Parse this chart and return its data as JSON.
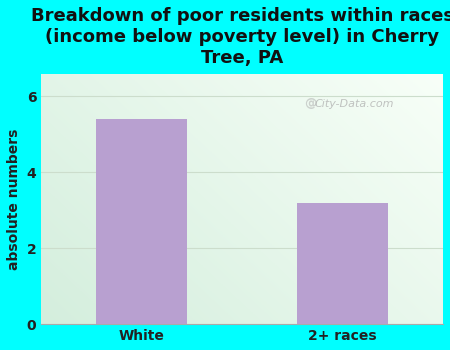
{
  "categories": [
    "White",
    "2+ races"
  ],
  "values": [
    5.4,
    3.2
  ],
  "bar_color": "#b8a0d0",
  "title": "Breakdown of poor residents within races\n(income below poverty level) in Cherry\nTree, PA",
  "ylabel": "absolute numbers",
  "ylim": [
    0,
    6.6
  ],
  "yticks": [
    0,
    2,
    4,
    6
  ],
  "title_bg_color": "#00ffff",
  "outer_bg_color": "#00ffff",
  "watermark": "City-Data.com",
  "title_fontsize": 13,
  "ylabel_fontsize": 10,
  "tick_fontsize": 10,
  "grid_color": "#ccddcc",
  "plot_bg_left": "#d8f0d8",
  "plot_bg_right": "#f0faf5"
}
